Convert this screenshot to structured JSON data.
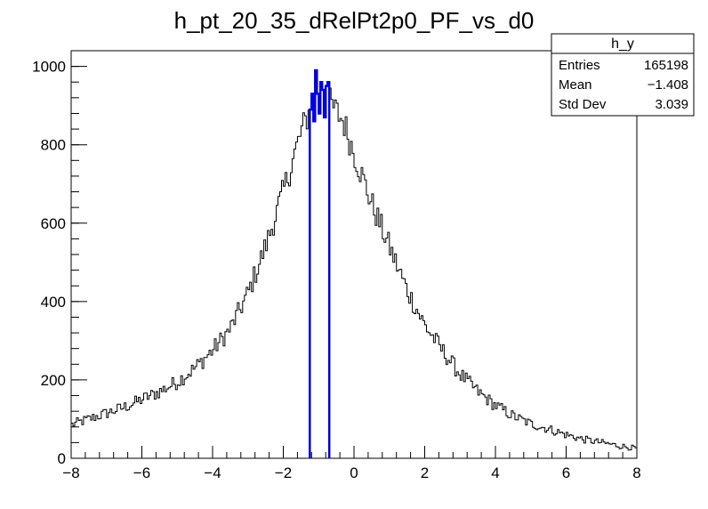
{
  "chart_data": {
    "type": "histogram",
    "title": "h_pt_20_35_dRelPt2p0_PF_vs_d0",
    "xlabel": "",
    "ylabel": "",
    "xlim": [
      -8,
      8
    ],
    "ylim": [
      0,
      1040
    ],
    "x_ticks": [
      -8,
      -6,
      -4,
      -2,
      0,
      2,
      4,
      6,
      8
    ],
    "y_ticks": [
      0,
      200,
      400,
      600,
      800,
      1000
    ],
    "x_tick_labels": [
      "−8",
      "−6",
      "−4",
      "−2",
      "0",
      "2",
      "4",
      "6",
      "8"
    ],
    "y_tick_labels": [
      "0",
      "200",
      "400",
      "600",
      "800",
      "1000"
    ],
    "bin_width": 0.05,
    "grid": false,
    "legend": "none",
    "stats_box": {
      "title": "h_y",
      "rows": [
        {
          "label": "Entries",
          "value": "165198"
        },
        {
          "label": "Mean",
          "value": "−1.408"
        },
        {
          "label": "Std Dev",
          "value": "3.039"
        }
      ],
      "placement": "top-right"
    },
    "series": [
      {
        "color": "#000000",
        "profile_points": [
          [
            -8.0,
            85
          ],
          [
            -7.5,
            100
          ],
          [
            -7.0,
            115
          ],
          [
            -6.5,
            130
          ],
          [
            -6.0,
            150
          ],
          [
            -5.5,
            170
          ],
          [
            -5.0,
            195
          ],
          [
            -4.5,
            230
          ],
          [
            -4.0,
            275
          ],
          [
            -3.5,
            330
          ],
          [
            -3.0,
            420
          ],
          [
            -2.5,
            540
          ],
          [
            -2.0,
            680
          ],
          [
            -1.5,
            830
          ],
          [
            -1.2,
            900
          ],
          [
            -0.8,
            920
          ],
          [
            -0.3,
            860
          ],
          [
            0.0,
            780
          ],
          [
            0.5,
            650
          ],
          [
            1.0,
            540
          ],
          [
            1.5,
            430
          ],
          [
            2.0,
            340
          ],
          [
            2.5,
            275
          ],
          [
            3.0,
            215
          ],
          [
            3.5,
            170
          ],
          [
            4.0,
            135
          ],
          [
            4.5,
            108
          ],
          [
            5.0,
            88
          ],
          [
            5.5,
            75
          ],
          [
            6.0,
            60
          ],
          [
            6.5,
            48
          ],
          [
            7.0,
            40
          ],
          [
            7.5,
            32
          ],
          [
            8.0,
            25
          ]
        ]
      },
      {
        "color": "#0000dd",
        "x_range": [
          -1.25,
          -0.7
        ],
        "values": [
          890,
          930,
          860,
          990,
          930,
          880,
          960,
          940,
          870,
          950,
          960
        ]
      }
    ]
  }
}
